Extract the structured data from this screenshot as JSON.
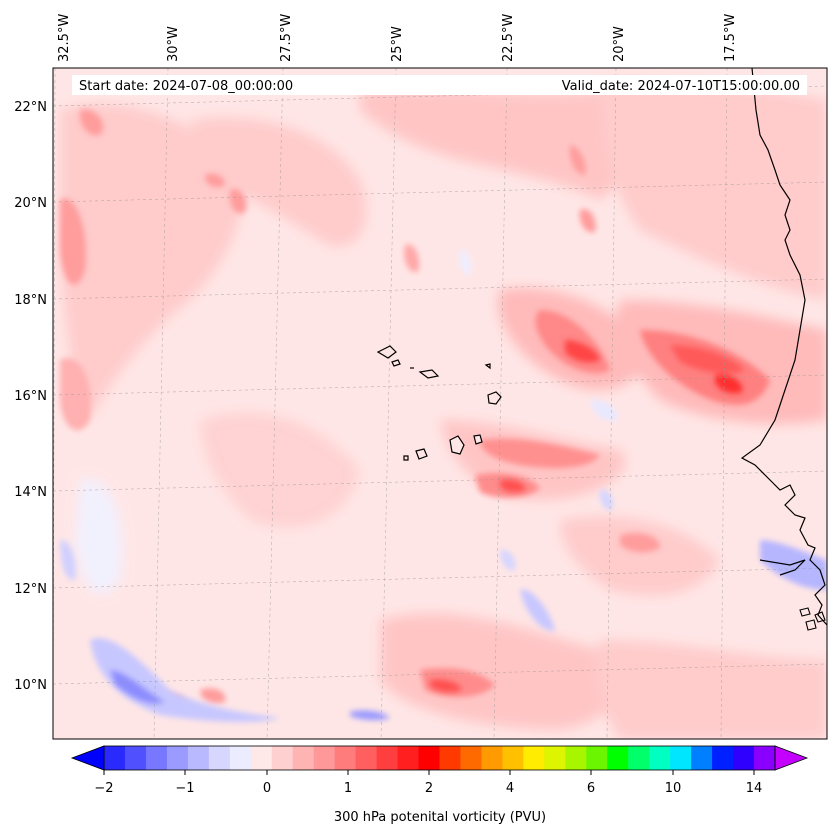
{
  "map": {
    "start_label": "Start date: 2024-07-08_00:00:00",
    "valid_label": "Valid_date: 2024-07-10T15:00:00.00",
    "lon_labels": [
      "32.5°W",
      "30°W",
      "27.5°W",
      "25°W",
      "22.5°W",
      "20°W",
      "17.5°W"
    ],
    "lat_labels": [
      "22°N",
      "20°N",
      "18°N",
      "16°N",
      "14°N",
      "12°N",
      "10°N"
    ],
    "colorbar": {
      "title": "300 hPa potenital vorticity (PVU)",
      "tick_labels": [
        "−2",
        "−1",
        "0",
        "1",
        "2",
        "4",
        "6",
        "10",
        "14"
      ],
      "colors": [
        "#0000ff",
        "#2a2aff",
        "#5050ff",
        "#7777ff",
        "#9a9aff",
        "#b9b9ff",
        "#d6d6ff",
        "#ececff",
        "#ffe8e8",
        "#ffd0d0",
        "#ffb4b4",
        "#ff9898",
        "#ff7c7c",
        "#ff5f5f",
        "#ff3f3f",
        "#ff1f1f",
        "#ff0000",
        "#ff3a00",
        "#ff6a00",
        "#ff9a00",
        "#ffc000",
        "#ffec00",
        "#ddf500",
        "#a8f500",
        "#6cf500",
        "#00ff00",
        "#00ff6a",
        "#00ffc0",
        "#00e6ff",
        "#0080ff",
        "#0020ff",
        "#3000ff",
        "#8a00ff",
        "#c400ff"
      ]
    }
  }
}
